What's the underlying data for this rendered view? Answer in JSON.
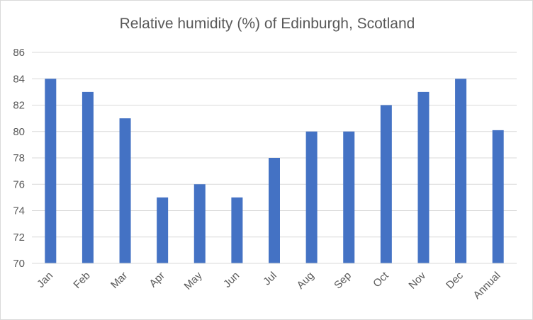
{
  "chart_data": {
    "type": "bar",
    "title": "Relative humidity (%) of Edinburgh, Scotland",
    "xlabel": "",
    "ylabel": "",
    "categories": [
      "Jan",
      "Feb",
      "Mar",
      "Apr",
      "May",
      "Jun",
      "Jul",
      "Aug",
      "Sep",
      "Oct",
      "Nov",
      "Dec",
      "Annual"
    ],
    "values": [
      84,
      83,
      81,
      75,
      76,
      75,
      78,
      80,
      80,
      82,
      83,
      84,
      80.1
    ],
    "ylim": [
      70,
      86
    ],
    "yticks": [
      "70",
      "72",
      "74",
      "76",
      "78",
      "80",
      "82",
      "84",
      "86"
    ],
    "grid": true,
    "legend": "none",
    "bar_color": "#4472C4",
    "grid_color": "#d9d9d9",
    "text_color": "#595959"
  }
}
